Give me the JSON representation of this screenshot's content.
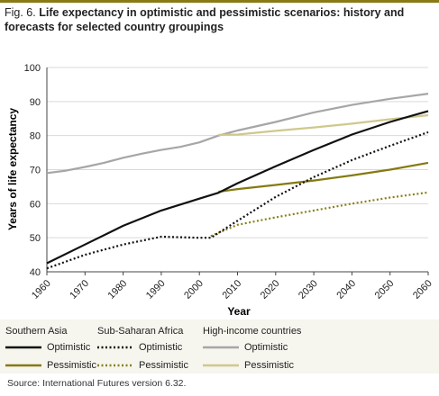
{
  "figure": {
    "label": "Fig. 6.",
    "title": "Life expectancy in optimistic and pessimistic scenarios: history and forecasts for selected country groupings",
    "source": "Source: International Futures version 6.32."
  },
  "colors": {
    "accent": "#8a7a16",
    "south_asia_opt": "#111111",
    "south_asia_pes": "#857a12",
    "ssa_opt": "#111111",
    "ssa_pes": "#8a7f18",
    "hi_opt": "#a6a6a6",
    "hi_pes": "#cfc88c"
  },
  "chart_data": {
    "type": "line",
    "title": "Life expectancy in optimistic and pessimistic scenarios: history and forecasts for selected country groupings",
    "xlabel": "Year",
    "ylabel": "Years of life expectancy",
    "xlim": [
      1960,
      2060
    ],
    "ylim": [
      40,
      100
    ],
    "x_ticks": [
      1960,
      1970,
      1980,
      1990,
      2000,
      2010,
      2020,
      2030,
      2040,
      2050,
      2060
    ],
    "y_ticks": [
      40,
      50,
      60,
      70,
      80,
      90,
      100
    ],
    "grid": "horizontal",
    "legend_position": "bottom",
    "series": [
      {
        "group": "Southern Asia",
        "name": "Optimistic",
        "style": "solid",
        "colorKey": "south_asia_opt",
        "points": [
          [
            1960,
            42.5
          ],
          [
            1970,
            48
          ],
          [
            1980,
            53.5
          ],
          [
            1990,
            58
          ],
          [
            2000,
            61.5
          ],
          [
            2005,
            63.2
          ],
          [
            2010,
            66
          ],
          [
            2020,
            71
          ],
          [
            2030,
            75.8
          ],
          [
            2040,
            80.3
          ],
          [
            2050,
            84
          ],
          [
            2060,
            87.2
          ]
        ]
      },
      {
        "group": "Southern Asia",
        "name": "Pessimistic",
        "style": "solid",
        "colorKey": "south_asia_pes",
        "points": [
          [
            2005,
            63.5
          ],
          [
            2010,
            64.3
          ],
          [
            2020,
            65.5
          ],
          [
            2030,
            66.8
          ],
          [
            2040,
            68.3
          ],
          [
            2050,
            70
          ],
          [
            2060,
            72
          ]
        ]
      },
      {
        "group": "Sub-Saharan Africa",
        "name": "Optimistic",
        "style": "dotted",
        "colorKey": "ssa_opt",
        "points": [
          [
            1960,
            41
          ],
          [
            1970,
            45
          ],
          [
            1980,
            48
          ],
          [
            1990,
            50.3
          ],
          [
            2000,
            50
          ],
          [
            2003,
            50
          ],
          [
            2010,
            55
          ],
          [
            2020,
            62
          ],
          [
            2030,
            67.8
          ],
          [
            2040,
            72.8
          ],
          [
            2050,
            77
          ],
          [
            2060,
            81
          ]
        ]
      },
      {
        "group": "Sub-Saharan Africa",
        "name": "Pessimistic",
        "style": "dotted",
        "colorKey": "ssa_pes",
        "points": [
          [
            2003,
            50.5
          ],
          [
            2010,
            53.8
          ],
          [
            2020,
            56
          ],
          [
            2030,
            58
          ],
          [
            2040,
            60
          ],
          [
            2050,
            61.8
          ],
          [
            2060,
            63.3
          ]
        ]
      },
      {
        "group": "High-income countries",
        "name": "Optimistic",
        "style": "solid",
        "colorKey": "hi_opt",
        "points": [
          [
            1960,
            69
          ],
          [
            1965,
            69.7
          ],
          [
            1970,
            70.8
          ],
          [
            1975,
            72
          ],
          [
            1980,
            73.5
          ],
          [
            1985,
            74.7
          ],
          [
            1990,
            75.8
          ],
          [
            1995,
            76.7
          ],
          [
            2000,
            78
          ],
          [
            2005,
            80
          ],
          [
            2010,
            81.5
          ],
          [
            2020,
            84
          ],
          [
            2030,
            86.8
          ],
          [
            2040,
            89
          ],
          [
            2050,
            90.8
          ],
          [
            2060,
            92.3
          ]
        ]
      },
      {
        "group": "High-income countries",
        "name": "Pessimistic",
        "style": "solid",
        "colorKey": "hi_pes",
        "points": [
          [
            2005,
            80.2
          ],
          [
            2010,
            80.3
          ],
          [
            2020,
            81.4
          ],
          [
            2030,
            82.4
          ],
          [
            2040,
            83.5
          ],
          [
            2050,
            84.8
          ],
          [
            2060,
            86
          ]
        ]
      }
    ]
  },
  "legend": {
    "groups": [
      {
        "title": "Southern Asia",
        "items": [
          {
            "label": "Optimistic",
            "colorKey": "south_asia_opt",
            "style": "solid"
          },
          {
            "label": "Pessimistic",
            "colorKey": "south_asia_pes",
            "style": "solid"
          }
        ]
      },
      {
        "title": "Sub-Saharan Africa",
        "items": [
          {
            "label": "Optimistic",
            "colorKey": "ssa_opt",
            "style": "dotted"
          },
          {
            "label": "Pessimistic",
            "colorKey": "ssa_pes",
            "style": "dotted"
          }
        ]
      },
      {
        "title": "High-income countries",
        "items": [
          {
            "label": "Optimistic",
            "colorKey": "hi_opt",
            "style": "solid"
          },
          {
            "label": "Pessimistic",
            "colorKey": "hi_pes",
            "style": "solid"
          }
        ]
      }
    ]
  }
}
